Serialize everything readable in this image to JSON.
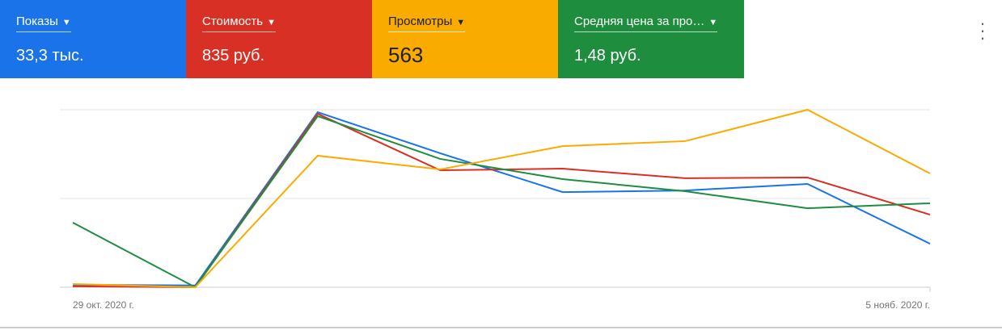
{
  "cards": [
    {
      "label": "Показы",
      "value": "33,3 тыс.",
      "color": "#1a73e8"
    },
    {
      "label": "Стоимость",
      "value": "835 руб.",
      "color": "#d93025"
    },
    {
      "label": "Просмотры",
      "value": "563",
      "color": "#f9ab00"
    },
    {
      "label": "Средняя цена за про…",
      "value": "1,48 руб.",
      "color": "#1e8e3e"
    }
  ],
  "menu_icon": "more-vert-icon",
  "chart_data": {
    "type": "line",
    "x_tick_labels": [
      "29 окт. 2020 г.",
      "5 нояб. 2020 г."
    ],
    "x": [
      "29 окт.",
      "30 окт.",
      "31 окт.",
      "1 нояб.",
      "2 нояб.",
      "3 нояб.",
      "4 нояб.",
      "5 нояб."
    ],
    "y_normalized": true,
    "grid": true,
    "series": [
      {
        "metric": "Показы",
        "color": "#1a73e8",
        "values": [
          0.014,
          0.01,
          0.986,
          0.755,
          0.536,
          0.545,
          0.582,
          0.245
        ]
      },
      {
        "metric": "Стоимость",
        "color": "#d93025",
        "values": [
          0.005,
          0,
          0.977,
          0.659,
          0.668,
          0.614,
          0.618,
          0.409
        ]
      },
      {
        "metric": "Средняя цена за про…",
        "color": "#1e8e3e",
        "values": [
          0.364,
          0,
          0.964,
          0.723,
          0.609,
          0.541,
          0.445,
          0.473
        ]
      },
      {
        "metric": "Просмотры",
        "color": "#f9ab00",
        "values": [
          0.018,
          0,
          0.741,
          0.664,
          0.795,
          0.823,
          1.0,
          0.641
        ]
      }
    ]
  }
}
